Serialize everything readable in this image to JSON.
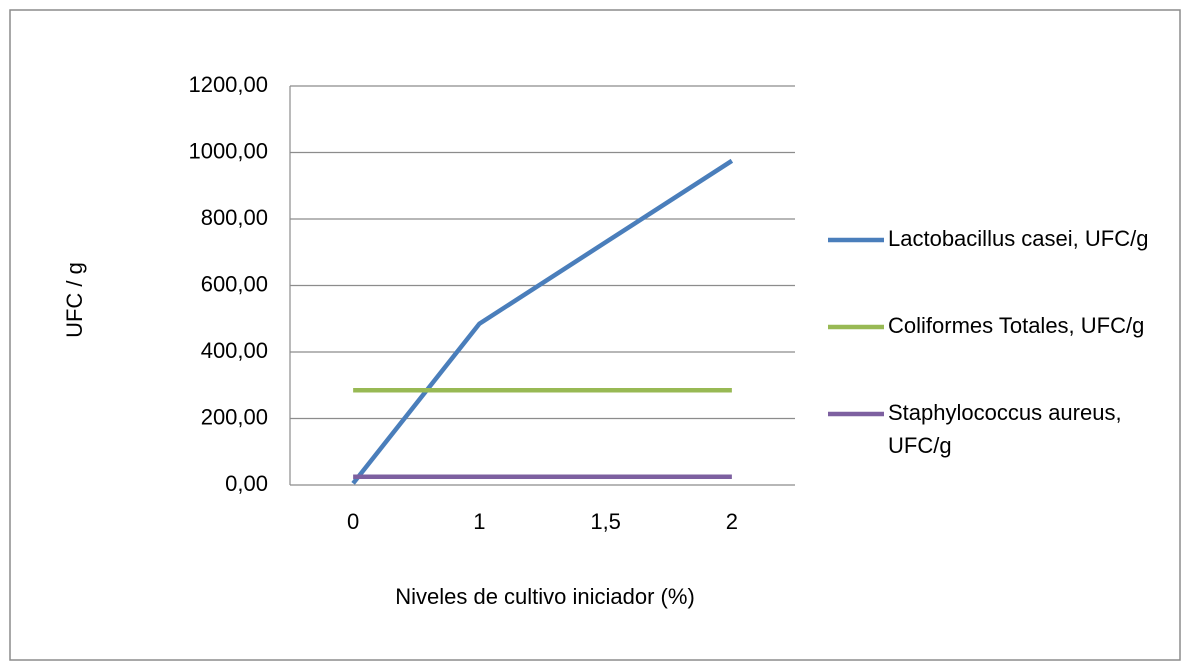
{
  "chart_data": {
    "type": "line",
    "x_label": "Niveles de cultivo iniciador (%)",
    "y_label": "UFC / g",
    "categories": [
      "0",
      "1",
      "1,5",
      "2"
    ],
    "series": [
      {
        "name": "Lactobacillus casei, UFC/g",
        "color": "#4a7ebb",
        "values": [
          5,
          485,
          730,
          975
        ]
      },
      {
        "name": "Coliformes Totales, UFC/g",
        "color": "#98b954",
        "values": [
          285,
          285,
          285,
          285
        ]
      },
      {
        "name": "Staphylococcus aureus, UFC/g",
        "color": "#7d60a0",
        "values": [
          25,
          25,
          25,
          25
        ]
      }
    ],
    "ylim": [
      0,
      1200
    ],
    "yticks": [
      {
        "value": 0,
        "label": "0,00"
      },
      {
        "value": 200,
        "label": "200,00"
      },
      {
        "value": 400,
        "label": "400,00"
      },
      {
        "value": 600,
        "label": "600,00"
      },
      {
        "value": 800,
        "label": "800,00"
      },
      {
        "value": 1000,
        "label": "1000,00"
      },
      {
        "value": 1200,
        "label": "1200,00"
      }
    ],
    "grid": true,
    "legend": "right"
  }
}
